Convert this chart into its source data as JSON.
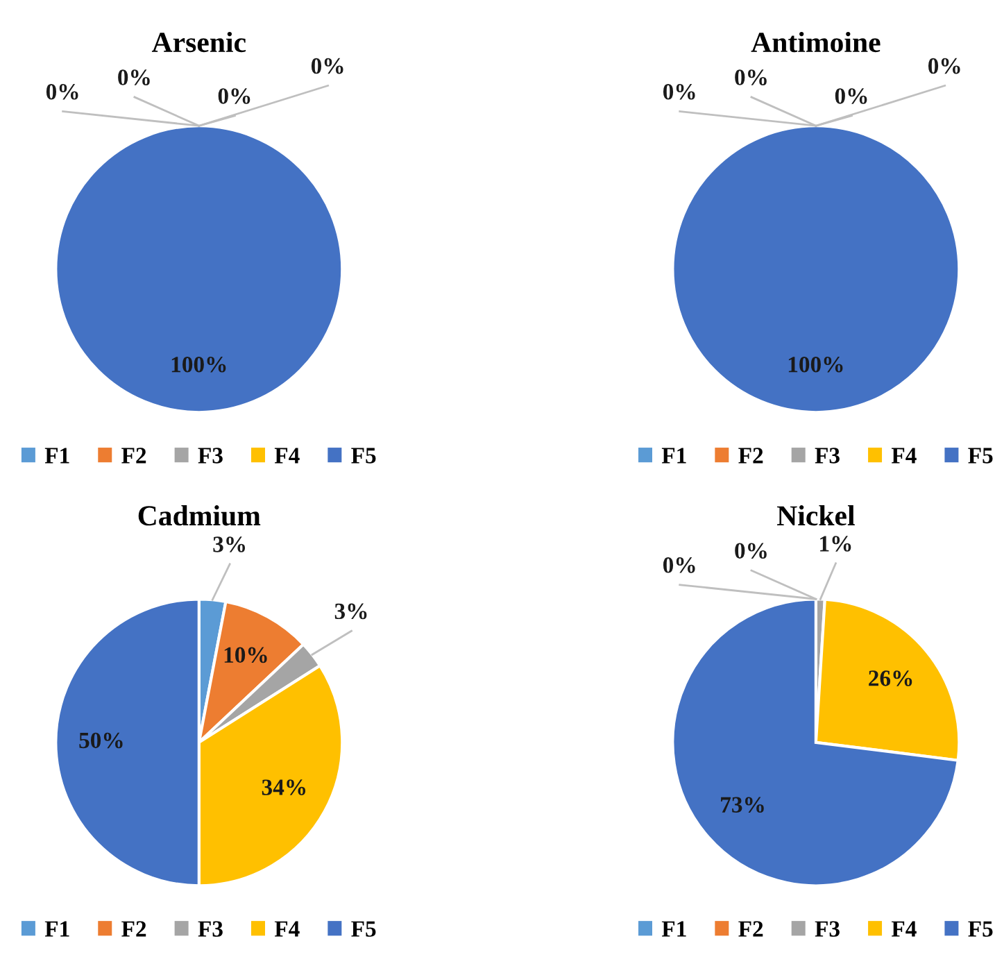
{
  "chart_data": [
    {
      "type": "pie",
      "title": "Arsenic",
      "categories": [
        "F1",
        "F2",
        "F3",
        "F4",
        "F5"
      ],
      "values": [
        0,
        0,
        0,
        0,
        100
      ],
      "value_labels": [
        "0%",
        "0%",
        "0%",
        "0%",
        "100%"
      ],
      "colors": [
        "#5b9bd5",
        "#ed7d31",
        "#a5a5a5",
        "#ffc000",
        "#4472c4"
      ],
      "legend": "bottom"
    },
    {
      "type": "pie",
      "title": "Antimoine",
      "categories": [
        "F1",
        "F2",
        "F3",
        "F4",
        "F5"
      ],
      "values": [
        0,
        0,
        0,
        0,
        100
      ],
      "value_labels": [
        "0%",
        "0%",
        "0%",
        "0%",
        "100%"
      ],
      "colors": [
        "#5b9bd5",
        "#ed7d31",
        "#a5a5a5",
        "#ffc000",
        "#4472c4"
      ],
      "legend": "bottom"
    },
    {
      "type": "pie",
      "title": "Cadmium",
      "categories": [
        "F1",
        "F2",
        "F3",
        "F4",
        "F5"
      ],
      "values": [
        3,
        10,
        3,
        34,
        50
      ],
      "value_labels": [
        "3%",
        "10%",
        "3%",
        "34%",
        "50%"
      ],
      "colors": [
        "#5b9bd5",
        "#ed7d31",
        "#a5a5a5",
        "#ffc000",
        "#4472c4"
      ],
      "legend": "bottom"
    },
    {
      "type": "pie",
      "title": "Nickel",
      "categories": [
        "F1",
        "F2",
        "F3",
        "F4",
        "F5"
      ],
      "values": [
        0,
        0,
        1,
        26,
        73
      ],
      "value_labels": [
        "0%",
        "0%",
        "1%",
        "26%",
        "73%"
      ],
      "colors": [
        "#5b9bd5",
        "#ed7d31",
        "#a5a5a5",
        "#ffc000",
        "#4472c4"
      ],
      "legend": "bottom"
    }
  ]
}
